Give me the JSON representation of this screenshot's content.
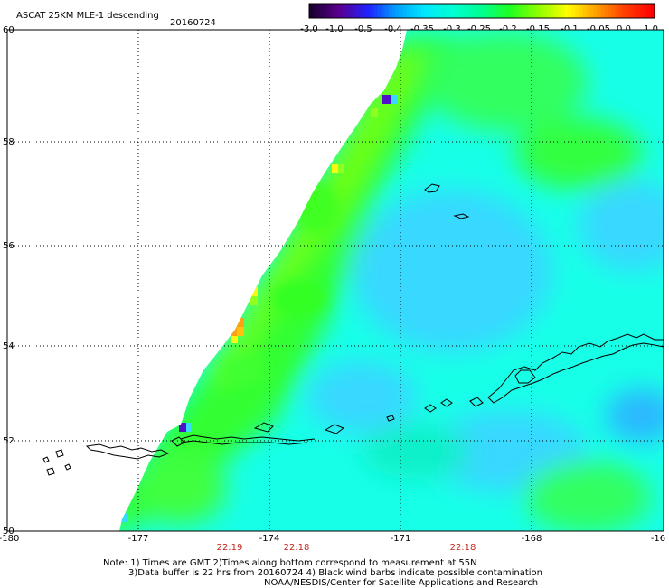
{
  "header": {
    "title": "ASCAT 25KM MLE-1 descending",
    "date": "20160724"
  },
  "colorbar": {
    "labels": [
      "-3.0",
      "-1.0",
      "-0.5",
      "-0.4",
      "-0.35",
      "-0.3",
      "-0.25",
      "-0.2",
      "-0.15",
      "-0.1",
      "-0.05",
      "0.0",
      "1.0"
    ],
    "colors": [
      "#1a0030",
      "#5a0090",
      "#2020ff",
      "#00a0ff",
      "#00e8ff",
      "#00ffd0",
      "#00ff90",
      "#20ff20",
      "#90ff00",
      "#ffff00",
      "#ffa000",
      "#ff4000",
      "#ff0000"
    ]
  },
  "map": {
    "lat_labels": [
      "60",
      "58",
      "56",
      "54",
      "52",
      "50"
    ],
    "lon_labels": [
      "-180",
      "-177",
      "-174",
      "-171",
      "-168",
      "-16"
    ],
    "time_labels": [
      "22:19",
      "22:18",
      "22:18"
    ],
    "field_colors": {
      "cyan": "#18ffe8",
      "teal": "#10f0c8",
      "green": "#20ff40",
      "bright_green": "#40ff10",
      "lime": "#90ff20",
      "light_blue": "#38d8ff",
      "yellow": "#f8f810",
      "orange": "#ffa010",
      "purple": "#5010c8"
    }
  },
  "notes": {
    "line1": "Note: 1) Times are GMT 2)Times along bottom correspond to measurement at 55N",
    "line2": "3)Data buffer is 22 hrs from 20160724 4) Black wind barbs indicate possible contamination",
    "line3": "NOAA/NESDIS/Center for Satellite Applications and Research"
  }
}
